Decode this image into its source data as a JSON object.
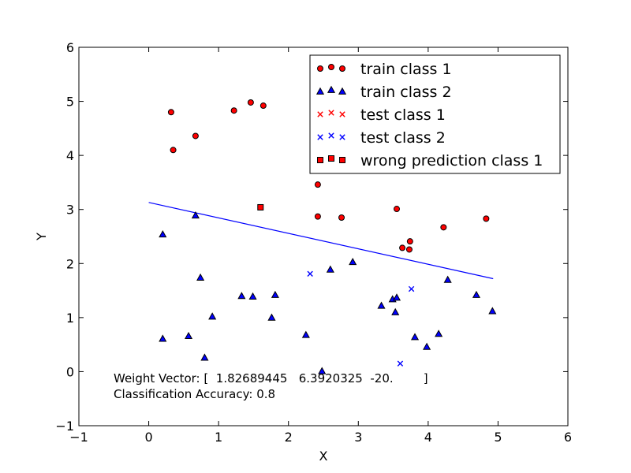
{
  "chart_data": {
    "type": "scatter",
    "xlabel": "X",
    "ylabel": "Y",
    "xlim": [
      -1,
      6
    ],
    "ylim": [
      -1,
      6
    ],
    "xticks": [
      "−1",
      "0",
      "1",
      "2",
      "3",
      "4",
      "5",
      "6"
    ],
    "yticks": [
      "−1",
      "0",
      "1",
      "2",
      "3",
      "4",
      "5",
      "6"
    ],
    "grid": false,
    "legend_position": "top-right",
    "series": [
      {
        "name": "train class 1",
        "marker": "circle",
        "color": "#ff0000",
        "points": [
          [
            0.32,
            4.8
          ],
          [
            0.35,
            4.1
          ],
          [
            0.67,
            4.36
          ],
          [
            1.22,
            4.83
          ],
          [
            1.46,
            4.98
          ],
          [
            1.64,
            4.92
          ],
          [
            2.42,
            3.46
          ],
          [
            2.42,
            2.87
          ],
          [
            2.76,
            2.85
          ],
          [
            3.55,
            3.01
          ],
          [
            3.63,
            2.29
          ],
          [
            3.74,
            2.41
          ],
          [
            3.73,
            2.26
          ],
          [
            4.22,
            2.67
          ],
          [
            4.83,
            2.83
          ]
        ]
      },
      {
        "name": "train class 2",
        "marker": "triangle",
        "color": "#0000ff",
        "points": [
          [
            0.2,
            2.54
          ],
          [
            0.67,
            2.89
          ],
          [
            0.74,
            1.74
          ],
          [
            0.2,
            0.61
          ],
          [
            0.57,
            0.66
          ],
          [
            0.8,
            0.26
          ],
          [
            0.91,
            1.02
          ],
          [
            1.33,
            1.4
          ],
          [
            1.49,
            1.39
          ],
          [
            1.76,
            1.0
          ],
          [
            1.81,
            1.42
          ],
          [
            2.25,
            0.68
          ],
          [
            2.48,
            0.01
          ],
          [
            2.6,
            1.89
          ],
          [
            2.92,
            2.03
          ],
          [
            3.33,
            1.22
          ],
          [
            3.49,
            1.34
          ],
          [
            3.55,
            1.37
          ],
          [
            3.53,
            1.1
          ],
          [
            3.81,
            0.64
          ],
          [
            3.98,
            0.46
          ],
          [
            4.15,
            0.7
          ],
          [
            4.28,
            1.7
          ],
          [
            4.69,
            1.42
          ],
          [
            4.92,
            1.12
          ]
        ]
      },
      {
        "name": "test class 1",
        "marker": "x",
        "color": "#ff0000",
        "points": []
      },
      {
        "name": "test class 2",
        "marker": "x",
        "color": "#0000ff",
        "points": [
          [
            2.31,
            1.81
          ],
          [
            3.76,
            1.53
          ],
          [
            3.6,
            0.15
          ]
        ]
      },
      {
        "name": "wrong prediction class 1",
        "marker": "square",
        "color": "#ff0000",
        "points": [
          [
            1.6,
            3.04
          ]
        ]
      }
    ],
    "decision_line": {
      "color": "#0000ff",
      "points": [
        [
          0,
          3.13
        ],
        [
          4.93,
          1.72
        ]
      ]
    },
    "annotations": [
      "Weight Vector: [  1.82689445   6.3920325  -20.        ]",
      "Classification Accuracy: 0.8"
    ]
  }
}
